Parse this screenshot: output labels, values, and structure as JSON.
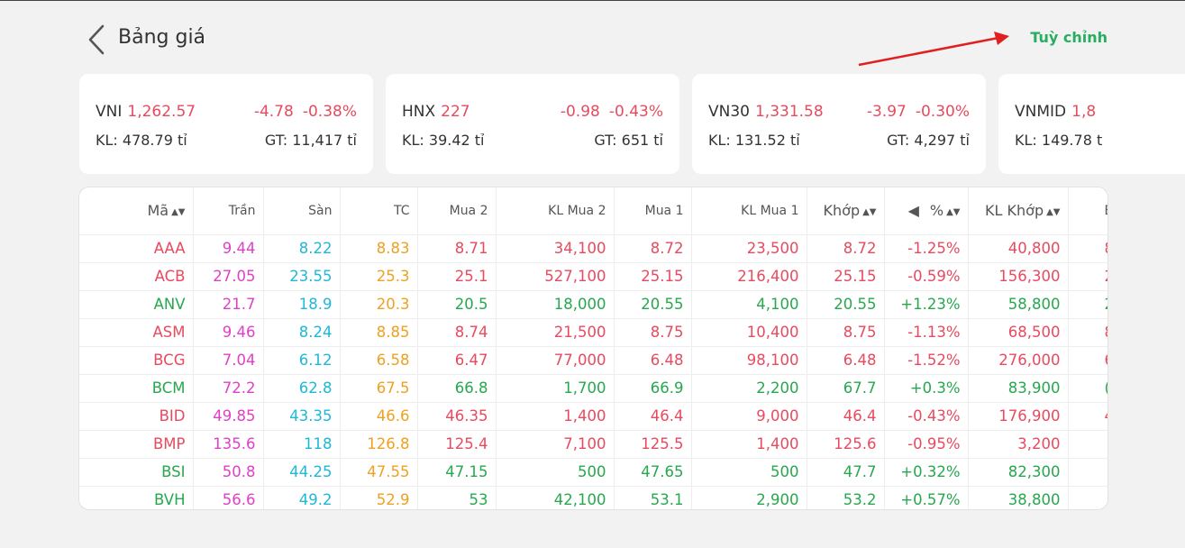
{
  "header": {
    "title": "Bảng giá",
    "customize_label": "Tuỳ chỉnh",
    "back_icon": "chevron-left-icon"
  },
  "indices": [
    {
      "name": "VNI",
      "value": "1,262.57",
      "change": "-4.78",
      "percent": "-0.38%",
      "kl": "KL: 478.79 tỉ",
      "gt": "GT: 11,417 tỉ"
    },
    {
      "name": "HNX",
      "value": "227",
      "change": "-0.98",
      "percent": "-0.43%",
      "kl": "KL: 39.42 tỉ",
      "gt": "GT: 651 tỉ"
    },
    {
      "name": "VN30",
      "value": "1,331.58",
      "change": "-3.97",
      "percent": "-0.30%",
      "kl": "KL: 131.52 tỉ",
      "gt": "GT: 4,297 tỉ"
    },
    {
      "name": "VNMID",
      "value": "1,8",
      "change": "",
      "percent": "",
      "kl": "KL: 149.78 t",
      "gt": ""
    }
  ],
  "table": {
    "headers": {
      "symbol": "Mã",
      "ceiling": "Trần",
      "floor": "Sàn",
      "ref": "TC",
      "bid2": "Mua 2",
      "bid2_vol": "KL Mua 2",
      "bid1": "Mua 1",
      "bid1_vol": "KL Mua 1",
      "match": "Khớp",
      "percent": "%",
      "match_vol": "KL Khớp",
      "extra": "B"
    },
    "rows": [
      {
        "symbol": "AAA",
        "ceiling": "9.44",
        "floor": "8.22",
        "ref": "8.83",
        "bid2": "8.71",
        "bid2_vol": "34,100",
        "bid1": "8.72",
        "bid1_vol": "23,500",
        "match": "8.72",
        "percent": "-1.25%",
        "match_vol": "40,800",
        "extra": "8",
        "trend": "down"
      },
      {
        "symbol": "ACB",
        "ceiling": "27.05",
        "floor": "23.55",
        "ref": "25.3",
        "bid2": "25.1",
        "bid2_vol": "527,100",
        "bid1": "25.15",
        "bid1_vol": "216,400",
        "match": "25.15",
        "percent": "-0.59%",
        "match_vol": "156,300",
        "extra": "2",
        "trend": "down"
      },
      {
        "symbol": "ANV",
        "ceiling": "21.7",
        "floor": "18.9",
        "ref": "20.3",
        "bid2": "20.5",
        "bid2_vol": "18,000",
        "bid1": "20.55",
        "bid1_vol": "4,100",
        "match": "20.55",
        "percent": "+1.23%",
        "match_vol": "58,800",
        "extra": "2",
        "trend": "up"
      },
      {
        "symbol": "ASM",
        "ceiling": "9.46",
        "floor": "8.24",
        "ref": "8.85",
        "bid2": "8.74",
        "bid2_vol": "21,500",
        "bid1": "8.75",
        "bid1_vol": "10,400",
        "match": "8.75",
        "percent": "-1.13%",
        "match_vol": "68,500",
        "extra": "8",
        "trend": "down"
      },
      {
        "symbol": "BCG",
        "ceiling": "7.04",
        "floor": "6.12",
        "ref": "6.58",
        "bid2": "6.47",
        "bid2_vol": "77,000",
        "bid1": "6.48",
        "bid1_vol": "98,100",
        "match": "6.48",
        "percent": "-1.52%",
        "match_vol": "276,000",
        "extra": "6",
        "trend": "down"
      },
      {
        "symbol": "BCM",
        "ceiling": "72.2",
        "floor": "62.8",
        "ref": "67.5",
        "bid2": "66.8",
        "bid2_vol": "1,700",
        "bid1": "66.9",
        "bid1_vol": "2,200",
        "match": "67.7",
        "percent": "+0.3%",
        "match_vol": "83,900",
        "extra": "(",
        "trend": "up"
      },
      {
        "symbol": "BID",
        "ceiling": "49.85",
        "floor": "43.35",
        "ref": "46.6",
        "bid2": "46.35",
        "bid2_vol": "1,400",
        "bid1": "46.4",
        "bid1_vol": "9,000",
        "match": "46.4",
        "percent": "-0.43%",
        "match_vol": "176,900",
        "extra": "46",
        "trend": "down"
      },
      {
        "symbol": "BMP",
        "ceiling": "135.6",
        "floor": "118",
        "ref": "126.8",
        "bid2": "125.4",
        "bid2_vol": "7,100",
        "bid1": "125.5",
        "bid1_vol": "1,400",
        "match": "125.6",
        "percent": "-0.95%",
        "match_vol": "3,200",
        "extra": "",
        "trend": "down"
      },
      {
        "symbol": "BSI",
        "ceiling": "50.8",
        "floor": "44.25",
        "ref": "47.55",
        "bid2": "47.15",
        "bid2_vol": "500",
        "bid1": "47.65",
        "bid1_vol": "500",
        "match": "47.7",
        "percent": "+0.32%",
        "match_vol": "82,300",
        "extra": "",
        "trend": "up"
      },
      {
        "symbol": "BVH",
        "ceiling": "56.6",
        "floor": "49.2",
        "ref": "52.9",
        "bid2": "53",
        "bid2_vol": "42,100",
        "bid1": "53.1",
        "bid1_vol": "2,900",
        "match": "53.2",
        "percent": "+0.57%",
        "match_vol": "38,800",
        "extra": "",
        "trend": "up"
      }
    ]
  },
  "colors": {
    "down": "#e84a5f",
    "up": "#27a84e",
    "ceiling": "#e040c8",
    "floor": "#1eb8d8",
    "reference": "#f0a020",
    "accent": "#27ae60"
  }
}
